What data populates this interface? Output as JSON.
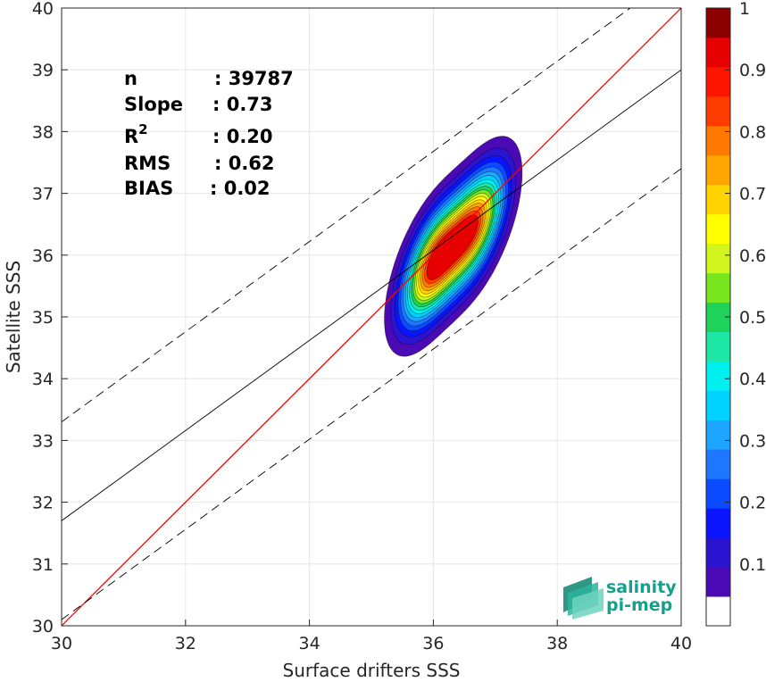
{
  "chart_data": {
    "type": "heatmap",
    "subtype": "density-contour scatter",
    "title": "",
    "xlabel": "Surface drifters SSS",
    "ylabel": "Satellite SSS",
    "xlim": [
      30,
      40
    ],
    "ylim": [
      30,
      40
    ],
    "xticks": [
      30,
      32,
      34,
      36,
      38,
      40
    ],
    "yticks": [
      30,
      31,
      32,
      33,
      34,
      35,
      36,
      37,
      38,
      39,
      40
    ],
    "grid": true,
    "stats": [
      {
        "key": "n",
        "sup": "",
        "value": ": 39787"
      },
      {
        "key": "Slope",
        "sup": "",
        "value": ": 0.73"
      },
      {
        "key": "R",
        "sup": "2",
        "value": ": 0.20"
      },
      {
        "key": "RMS",
        "sup": "",
        "value": ": 0.62"
      },
      {
        "key": "BIAS",
        "sup": "",
        "value": ": 0.02"
      }
    ],
    "lines": [
      {
        "role": "one-to-one",
        "color": "#ff0000",
        "style": "solid",
        "x": [
          30,
          40
        ],
        "y": [
          30,
          40
        ]
      },
      {
        "role": "regression",
        "color": "#000000",
        "style": "solid",
        "x": [
          30,
          40
        ],
        "y": [
          31.7,
          39.0
        ]
      },
      {
        "role": "upper-bound",
        "color": "#000000",
        "style": "dashed",
        "x": [
          30,
          40
        ],
        "y": [
          33.3,
          40.6
        ]
      },
      {
        "role": "lower-bound",
        "color": "#000000",
        "style": "dashed",
        "x": [
          30,
          40
        ],
        "y": [
          30.1,
          37.4
        ]
      }
    ],
    "density": {
      "levels": [
        0.05,
        0.1,
        0.15,
        0.2,
        0.25,
        0.3,
        0.35,
        0.4,
        0.45,
        0.5,
        0.55,
        0.6,
        0.65,
        0.7,
        0.75,
        0.8,
        0.85,
        0.9
      ],
      "colors": [
        "#4b0ab4",
        "#2a14d2",
        "#0a14ff",
        "#0a4bff",
        "#1e78ff",
        "#1ea5ff",
        "#00d2ff",
        "#00f0f0",
        "#1ee6a5",
        "#1ed25a",
        "#78e61e",
        "#d2f51e",
        "#ffff00",
        "#ffd200",
        "#ffa500",
        "#ff7800",
        "#ff3c00",
        "#e60000"
      ],
      "peaks": [
        {
          "x": 36.0,
          "y": 35.85,
          "weight": 1.0
        },
        {
          "x": 36.65,
          "y": 36.45,
          "weight": 0.95
        }
      ]
    },
    "colorbar": {
      "min": 0,
      "max": 1,
      "ticks": [
        0.1,
        0.2,
        0.3,
        0.4,
        0.5,
        0.6,
        0.7,
        0.8,
        0.9,
        1
      ],
      "tick_labels": [
        "0.1",
        "0.2",
        "0.3",
        "0.4",
        "0.5",
        "0.6",
        "0.7",
        "0.8",
        "0.9",
        "1"
      ],
      "colors": [
        "#ffffff",
        "#4b0ab4",
        "#2a14d2",
        "#0a14ff",
        "#0a4bff",
        "#1e78ff",
        "#1ea5ff",
        "#00d2ff",
        "#00f0f0",
        "#1ee6a5",
        "#1ed25a",
        "#78e61e",
        "#d2f51e",
        "#ffff00",
        "#ffd200",
        "#ffa500",
        "#ff7800",
        "#ff3c00",
        "#ff1400",
        "#e60000",
        "#8c0000"
      ]
    },
    "logo": {
      "line1": "salinity",
      "line2": "pi-mep",
      "color": "#14a08c"
    }
  }
}
